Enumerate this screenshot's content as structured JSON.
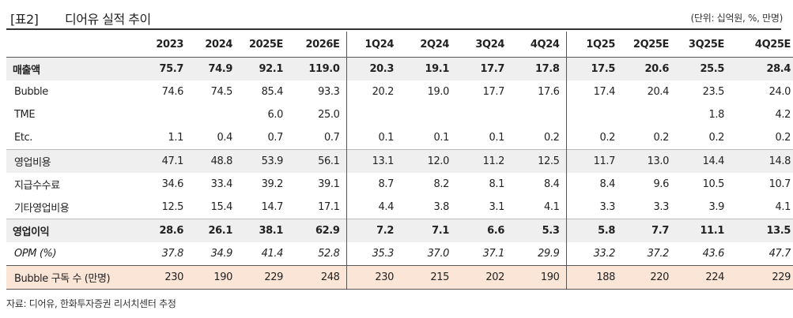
{
  "title": {
    "label": "[표2]",
    "text": "디어유 실적 추이",
    "unit": "(단위: 십억원, %, 만명)"
  },
  "headers": [
    "2023",
    "2024",
    "2025E",
    "2026E",
    "1Q24",
    "2Q24",
    "3Q24",
    "4Q24",
    "1Q25",
    "2Q25E",
    "3Q25E",
    "4Q25E"
  ],
  "rows": [
    {
      "label": "매출액",
      "values": [
        "75.7",
        "74.9",
        "92.1",
        "119.0",
        "20.3",
        "19.1",
        "17.7",
        "17.8",
        "17.5",
        "20.6",
        "25.5",
        "28.4"
      ]
    },
    {
      "label": "Bubble",
      "values": [
        "74.6",
        "74.5",
        "85.4",
        "93.3",
        "20.2",
        "19.0",
        "17.7",
        "17.6",
        "17.4",
        "20.4",
        "23.5",
        "24.0"
      ]
    },
    {
      "label": "TME",
      "values": [
        "",
        "",
        "6.0",
        "25.0",
        "",
        "",
        "",
        "",
        "",
        "",
        "1.8",
        "4.2"
      ]
    },
    {
      "label": "Etc.",
      "values": [
        "1.1",
        "0.4",
        "0.7",
        "0.7",
        "0.1",
        "0.1",
        "0.1",
        "0.2",
        "0.2",
        "0.2",
        "0.2",
        "0.2"
      ]
    },
    {
      "label": "영업비용",
      "values": [
        "47.1",
        "48.8",
        "53.9",
        "56.1",
        "13.1",
        "12.0",
        "11.2",
        "12.5",
        "11.7",
        "13.0",
        "14.4",
        "14.8"
      ]
    },
    {
      "label": "지급수수료",
      "values": [
        "34.6",
        "33.4",
        "39.2",
        "39.1",
        "8.7",
        "8.2",
        "8.1",
        "8.4",
        "8.4",
        "9.6",
        "10.5",
        "10.7"
      ]
    },
    {
      "label": "기타영업비용",
      "values": [
        "12.5",
        "15.4",
        "14.7",
        "17.1",
        "4.4",
        "3.8",
        "3.1",
        "4.1",
        "3.3",
        "3.3",
        "3.9",
        "4.1"
      ]
    },
    {
      "label": "영업이익",
      "values": [
        "28.6",
        "26.1",
        "38.1",
        "62.9",
        "7.2",
        "7.1",
        "6.6",
        "5.3",
        "5.8",
        "7.7",
        "11.1",
        "13.5"
      ]
    },
    {
      "label": "OPM (%)",
      "values": [
        "37.8",
        "34.9",
        "41.4",
        "52.8",
        "35.3",
        "37.0",
        "37.1",
        "29.9",
        "33.2",
        "37.2",
        "43.6",
        "47.7"
      ]
    },
    {
      "label": "Bubble 구독 수 (만명)",
      "values": [
        "230",
        "190",
        "229",
        "248",
        "230",
        "215",
        "202",
        "190",
        "188",
        "220",
        "224",
        "229"
      ]
    }
  ],
  "footer": "자료: 디어유, 한화투자증권 리서치센터 추정"
}
